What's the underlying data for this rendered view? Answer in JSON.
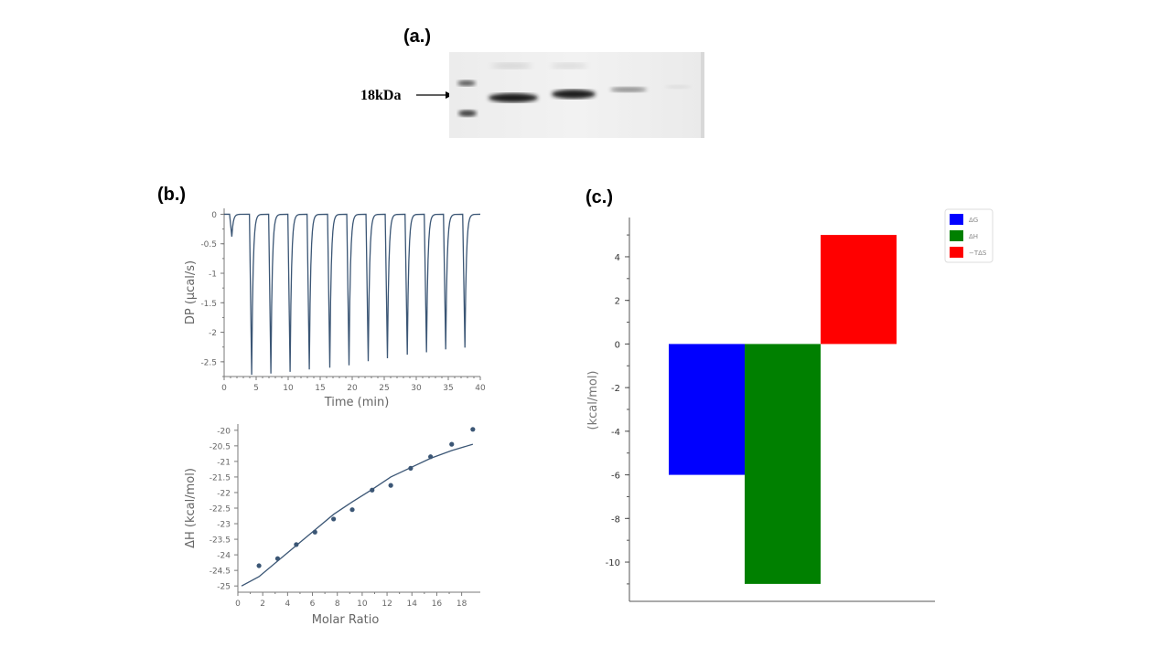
{
  "panel_a": {
    "label": "(a.)",
    "marker_label": "18kDa"
  },
  "panel_b": {
    "label": "(b.)"
  },
  "panel_c": {
    "label": "(c.)"
  },
  "chart_data": [
    {
      "type": "line",
      "xlabel": "Time (min)",
      "ylabel": "DP (µcal/s)",
      "xlim": [
        0,
        40
      ],
      "ylim": [
        -2.75,
        0.1
      ],
      "xticks": [
        "0",
        "5",
        "10",
        "15",
        "20",
        "25",
        "30",
        "35",
        "40"
      ],
      "yticks": [
        "0",
        "-0.5",
        "-1",
        "-1.5",
        "-2",
        "-2.5"
      ],
      "baseline": 0,
      "injections": [
        {
          "t": 1.2,
          "min": -0.38
        },
        {
          "t": 4.3,
          "min": -2.72
        },
        {
          "t": 7.3,
          "min": -2.7
        },
        {
          "t": 10.3,
          "min": -2.67
        },
        {
          "t": 13.3,
          "min": -2.63
        },
        {
          "t": 16.5,
          "min": -2.6
        },
        {
          "t": 19.5,
          "min": -2.56
        },
        {
          "t": 22.5,
          "min": -2.49
        },
        {
          "t": 25.5,
          "min": -2.44
        },
        {
          "t": 28.6,
          "min": -2.38
        },
        {
          "t": 31.6,
          "min": -2.34
        },
        {
          "t": 34.6,
          "min": -2.29
        },
        {
          "t": 37.6,
          "min": -2.26
        }
      ],
      "color": "#3b5675"
    },
    {
      "type": "scatter",
      "xlabel": "Molar Ratio",
      "ylabel": "ΔH (kcal/mol)",
      "xlim": [
        0,
        19.5
      ],
      "ylim": [
        -25.2,
        -19.8
      ],
      "xticks": [
        "0",
        "2",
        "4",
        "6",
        "8",
        "10",
        "12",
        "14",
        "16",
        "18"
      ],
      "yticks": [
        "-20",
        "-20.5",
        "-21",
        "-21.5",
        "-22",
        "-22.5",
        "-23",
        "-23.5",
        "-24",
        "-24.5",
        "-25"
      ],
      "points": [
        {
          "x": 1.7,
          "y": -24.35
        },
        {
          "x": 3.2,
          "y": -24.12
        },
        {
          "x": 4.7,
          "y": -23.67
        },
        {
          "x": 6.2,
          "y": -23.27
        },
        {
          "x": 7.7,
          "y": -22.85
        },
        {
          "x": 9.2,
          "y": -22.55
        },
        {
          "x": 10.8,
          "y": -21.92
        },
        {
          "x": 12.3,
          "y": -21.77
        },
        {
          "x": 13.9,
          "y": -21.22
        },
        {
          "x": 15.5,
          "y": -20.85
        },
        {
          "x": 17.2,
          "y": -20.45
        },
        {
          "x": 18.9,
          "y": -19.97
        }
      ],
      "fit": [
        {
          "x": 0.3,
          "y": -25.0
        },
        {
          "x": 1.7,
          "y": -24.7
        },
        {
          "x": 3.2,
          "y": -24.2
        },
        {
          "x": 4.7,
          "y": -23.7
        },
        {
          "x": 6.2,
          "y": -23.2
        },
        {
          "x": 7.7,
          "y": -22.7
        },
        {
          "x": 9.2,
          "y": -22.3
        },
        {
          "x": 10.8,
          "y": -21.9
        },
        {
          "x": 12.3,
          "y": -21.5
        },
        {
          "x": 13.9,
          "y": -21.2
        },
        {
          "x": 15.5,
          "y": -20.9
        },
        {
          "x": 17.2,
          "y": -20.65
        },
        {
          "x": 18.9,
          "y": -20.45
        }
      ],
      "color": "#3b5675"
    },
    {
      "type": "bar",
      "ylabel": "(kcal/mol)",
      "ylim": [
        -11.8,
        5.8
      ],
      "yticks": [
        "4",
        "2",
        "0",
        "-2",
        "-4",
        "-6",
        "-8",
        "-10"
      ],
      "categories": [
        "ΔG",
        "ΔH",
        "−TΔS"
      ],
      "values": [
        -6,
        -11,
        5
      ],
      "colors": [
        "#0000ff",
        "#008000",
        "#ff0000"
      ],
      "legend": [
        {
          "name": "ΔG",
          "color": "#0000ff"
        },
        {
          "name": "ΔH",
          "color": "#008000"
        },
        {
          "name": "−TΔS",
          "color": "#ff0000"
        }
      ],
      "legend_position": "top-right"
    }
  ]
}
